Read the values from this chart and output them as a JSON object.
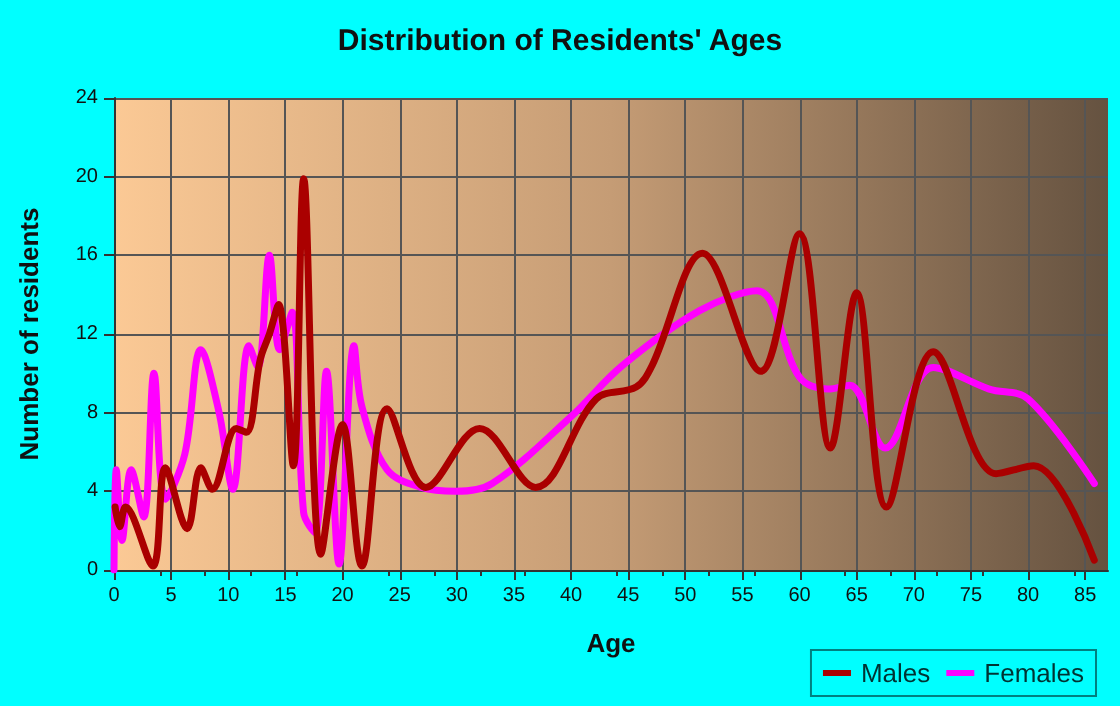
{
  "chart_data": {
    "type": "line",
    "title": "Distribution of Residents' Ages",
    "xlabel": "Age",
    "ylabel": "Number of residents",
    "xlim": [
      0,
      87
    ],
    "xticks": [
      0,
      5,
      10,
      15,
      20,
      25,
      30,
      35,
      40,
      45,
      50,
      55,
      60,
      65,
      70,
      75,
      80,
      85
    ],
    "ylim": [
      0,
      24
    ],
    "yticks": [
      0,
      4,
      8,
      12,
      16,
      20,
      24
    ],
    "grid": true,
    "legend": "bottom right",
    "marker": "none",
    "line_style": "solid",
    "series": [
      {
        "name": "Males",
        "color": "#aa0000",
        "x": [
          0.1,
          0.5,
          1,
          3.4,
          4.5,
          6.4,
          7.6,
          8.6,
          10.7,
          11.6,
          12.8,
          13.6,
          14.4,
          15.7,
          16.6,
          18.1,
          20,
          21.7,
          23.9,
          27.3,
          32,
          36.9,
          42.2,
          45.7,
          47.1,
          51.5,
          56.6,
          60,
          62.7,
          65,
          67.6,
          71.7,
          77.2,
          80.5,
          85.8
        ],
        "values": [
          3.2,
          2.2,
          3.2,
          0.2,
          5.2,
          2.1,
          5.2,
          4.1,
          7.2,
          7,
          10.7,
          12,
          13.5,
          5.3,
          19.9,
          0.8,
          7.4,
          0.2,
          8.2,
          4.2,
          7.2,
          4.2,
          8.7,
          9.3,
          10.4,
          16.1,
          10.1,
          17.1,
          6.2,
          14.1,
          3.2,
          11.1,
          4.9,
          5.3,
          0.5
        ]
      },
      {
        "name": "Females",
        "color": "#ff00ff",
        "x": [
          0,
          0.2,
          0.7,
          1.5,
          2.6,
          3.5,
          4.5,
          6.2,
          7.6,
          9.2,
          10.4,
          11.8,
          12.6,
          13.6,
          14.5,
          15.6,
          16.6,
          17.6,
          18.6,
          19.7,
          21,
          21.7,
          23.9,
          26.9,
          29.9,
          33.1,
          40,
          44.5,
          51.3,
          56.3,
          60,
          62.5,
          64.4,
          67.5,
          71.7,
          76.6,
          80,
          85.8
        ],
        "values": [
          0,
          5.1,
          1.5,
          5.1,
          2.7,
          10,
          3.6,
          5.9,
          11.2,
          8,
          4.1,
          11.4,
          10.3,
          16,
          11.2,
          13.1,
          2.9,
          1.9,
          10.1,
          0.3,
          11.4,
          8.3,
          5.1,
          4.2,
          4,
          4.4,
          7.8,
          10.4,
          13.2,
          14.2,
          9.8,
          9.2,
          9.4,
          6.2,
          10.3,
          9.2,
          8.7,
          4.4
        ]
      }
    ]
  }
}
